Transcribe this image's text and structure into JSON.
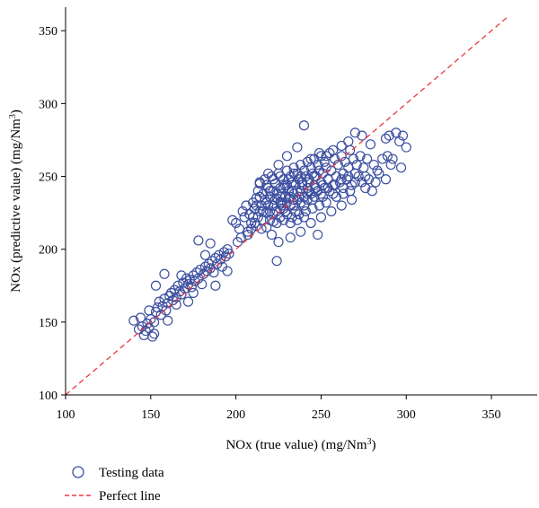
{
  "chart_data": {
    "type": "scatter",
    "xlabel": "NOx (true value) (mg/Nm",
    "xlabel_sup": "3",
    "xlabel_end": ")",
    "ylabel": "NOx (predictive value) (mg/Nm",
    "ylabel_sup": "3",
    "ylabel_end": ")",
    "xlim": [
      100,
      360
    ],
    "ylim": [
      100,
      360
    ],
    "x_ticks": [
      100,
      150,
      200,
      250,
      300,
      350
    ],
    "y_ticks": [
      100,
      150,
      200,
      250,
      300,
      350
    ],
    "grid": false,
    "legend_placement": "bottom-left",
    "colors": {
      "points": "#3c4fa0",
      "perfect_line": "#e8393f"
    },
    "series": [
      {
        "name": "Testing data",
        "kind": "scatter",
        "points": [
          [
            140,
            151
          ],
          [
            143,
            145
          ],
          [
            144,
            153
          ],
          [
            145,
            147
          ],
          [
            146,
            141
          ],
          [
            147,
            144
          ],
          [
            148,
            149
          ],
          [
            149,
            146
          ],
          [
            150,
            152
          ],
          [
            151,
            140
          ],
          [
            152,
            150
          ],
          [
            153,
            157
          ],
          [
            154,
            160
          ],
          [
            155,
            164
          ],
          [
            156,
            155
          ],
          [
            157,
            161
          ],
          [
            158,
            166
          ],
          [
            159,
            158
          ],
          [
            160,
            163
          ],
          [
            161,
            168
          ],
          [
            162,
            170
          ],
          [
            163,
            165
          ],
          [
            164,
            172
          ],
          [
            165,
            167
          ],
          [
            166,
            175
          ],
          [
            167,
            171
          ],
          [
            168,
            169
          ],
          [
            169,
            177
          ],
          [
            170,
            173
          ],
          [
            171,
            180
          ],
          [
            172,
            176
          ],
          [
            173,
            179
          ],
          [
            174,
            174
          ],
          [
            175,
            182
          ],
          [
            176,
            178
          ],
          [
            177,
            184
          ],
          [
            178,
            180
          ],
          [
            179,
            186
          ],
          [
            180,
            176
          ],
          [
            181,
            183
          ],
          [
            182,
            188
          ],
          [
            183,
            185
          ],
          [
            184,
            190
          ],
          [
            185,
            187
          ],
          [
            186,
            192
          ],
          [
            187,
            184
          ],
          [
            188,
            194
          ],
          [
            189,
            190
          ],
          [
            190,
            196
          ],
          [
            191,
            193
          ],
          [
            192,
            188
          ],
          [
            193,
            198
          ],
          [
            194,
            195
          ],
          [
            195,
            200
          ],
          [
            196,
            197
          ],
          [
            153,
            175
          ],
          [
            158,
            183
          ],
          [
            152,
            142
          ],
          [
            165,
            162
          ],
          [
            172,
            164
          ],
          [
            178,
            206
          ],
          [
            185,
            204
          ],
          [
            188,
            175
          ],
          [
            195,
            185
          ],
          [
            168,
            182
          ],
          [
            175,
            170
          ],
          [
            182,
            196
          ],
          [
            160,
            151
          ],
          [
            149,
            158
          ],
          [
            198,
            220
          ],
          [
            200,
            218
          ],
          [
            202,
            214
          ],
          [
            204,
            226
          ],
          [
            205,
            222
          ],
          [
            206,
            230
          ],
          [
            207,
            212
          ],
          [
            208,
            224
          ],
          [
            209,
            218
          ],
          [
            210,
            232
          ],
          [
            210,
            222
          ],
          [
            211,
            228
          ],
          [
            212,
            235
          ],
          [
            212,
            216
          ],
          [
            213,
            240
          ],
          [
            214,
            226
          ],
          [
            214,
            245
          ],
          [
            215,
            230
          ],
          [
            216,
            220
          ],
          [
            216,
            238
          ],
          [
            217,
            248
          ],
          [
            218,
            232
          ],
          [
            218,
            225
          ],
          [
            219,
            242
          ],
          [
            220,
            236
          ],
          [
            220,
            226
          ],
          [
            221,
            250
          ],
          [
            222,
            240
          ],
          [
            222,
            230
          ],
          [
            223,
            245
          ],
          [
            224,
            235
          ],
          [
            224,
            226
          ],
          [
            225,
            252
          ],
          [
            226,
            242
          ],
          [
            226,
            232
          ],
          [
            227,
            238
          ],
          [
            228,
            248
          ],
          [
            228,
            228
          ],
          [
            229,
            236
          ],
          [
            230,
            244
          ],
          [
            230,
            254
          ],
          [
            231,
            240
          ],
          [
            232,
            230
          ],
          [
            232,
            250
          ],
          [
            233,
            246
          ],
          [
            234,
            238
          ],
          [
            234,
            256
          ],
          [
            235,
            244
          ],
          [
            236,
            234
          ],
          [
            236,
            252
          ],
          [
            237,
            248
          ],
          [
            238,
            240
          ],
          [
            238,
            258
          ],
          [
            239,
            246
          ],
          [
            240,
            236
          ],
          [
            240,
            254
          ],
          [
            241,
            250
          ],
          [
            242,
            242
          ],
          [
            242,
            260
          ],
          [
            243,
            248
          ],
          [
            244,
            238
          ],
          [
            244,
            256
          ],
          [
            245,
            252
          ],
          [
            246,
            244
          ],
          [
            246,
            262
          ],
          [
            247,
            250
          ],
          [
            248,
            240
          ],
          [
            248,
            258
          ],
          [
            249,
            254
          ],
          [
            250,
            246
          ],
          [
            250,
            264
          ],
          [
            251,
            252
          ],
          [
            252,
            242
          ],
          [
            252,
            260
          ],
          [
            253,
            256
          ],
          [
            254,
            248
          ],
          [
            255,
            266
          ],
          [
            256,
            254
          ],
          [
            257,
            244
          ],
          [
            258,
            262
          ],
          [
            259,
            250
          ],
          [
            260,
            258
          ],
          [
            261,
            246
          ],
          [
            262,
            264
          ],
          [
            263,
            252
          ],
          [
            264,
            260
          ],
          [
            265,
            248
          ],
          [
            266,
            256
          ],
          [
            267,
            268
          ],
          [
            268,
            244
          ],
          [
            269,
            262
          ],
          [
            270,
            252
          ],
          [
            271,
            258
          ],
          [
            272,
            250
          ],
          [
            273,
            264
          ],
          [
            274,
            246
          ],
          [
            275,
            256
          ],
          [
            276,
            242
          ],
          [
            277,
            262
          ],
          [
            278,
            248
          ],
          [
            280,
            240
          ],
          [
            281,
            258
          ],
          [
            282,
            246
          ],
          [
            284,
            252
          ],
          [
            286,
            262
          ],
          [
            288,
            276
          ],
          [
            289,
            264
          ],
          [
            290,
            278
          ],
          [
            292,
            262
          ],
          [
            294,
            280
          ],
          [
            296,
            274
          ],
          [
            298,
            278
          ],
          [
            300,
            270
          ],
          [
            297,
            256
          ],
          [
            288,
            248
          ],
          [
            279,
            272
          ],
          [
            274,
            278
          ],
          [
            270,
            280
          ],
          [
            266,
            274
          ],
          [
            262,
            271
          ],
          [
            257,
            268
          ],
          [
            253,
            264
          ],
          [
            249,
            266
          ],
          [
            244,
            262
          ],
          [
            240,
            285
          ],
          [
            236,
            270
          ],
          [
            230,
            264
          ],
          [
            225,
            258
          ],
          [
            219,
            252
          ],
          [
            214,
            246
          ],
          [
            221,
            210
          ],
          [
            225,
            205
          ],
          [
            232,
            208
          ],
          [
            238,
            212
          ],
          [
            244,
            218
          ],
          [
            250,
            222
          ],
          [
            256,
            226
          ],
          [
            262,
            230
          ],
          [
            268,
            234
          ],
          [
            234,
            230
          ],
          [
            231,
            235
          ],
          [
            227,
            232
          ],
          [
            229,
            244
          ],
          [
            233,
            240
          ],
          [
            237,
            236
          ],
          [
            226,
            236
          ],
          [
            223,
            234
          ],
          [
            219,
            230
          ],
          [
            216,
            226
          ],
          [
            213,
            222
          ],
          [
            211,
            218
          ],
          [
            209,
            214
          ],
          [
            207,
            210
          ],
          [
            203,
            208
          ],
          [
            201,
            205
          ],
          [
            215,
            214
          ],
          [
            218,
            215
          ],
          [
            222,
            219
          ],
          [
            226,
            222
          ],
          [
            230,
            224
          ],
          [
            235,
            226
          ],
          [
            240,
            230
          ],
          [
            245,
            234
          ],
          [
            251,
            236
          ],
          [
            257,
            238
          ],
          [
            263,
            242
          ],
          [
            270,
            246
          ],
          [
            276,
            250
          ],
          [
            283,
            254
          ],
          [
            291,
            258
          ],
          [
            231,
            248
          ],
          [
            228,
            242
          ],
          [
            224,
            238
          ],
          [
            220,
            240
          ],
          [
            217,
            234
          ],
          [
            239,
            244
          ],
          [
            243,
            240
          ],
          [
            247,
            242
          ],
          [
            251,
            244
          ],
          [
            255,
            240
          ],
          [
            259,
            236
          ],
          [
            263,
            238
          ],
          [
            267,
            240
          ],
          [
            229,
            226
          ],
          [
            233,
            222
          ],
          [
            237,
            224
          ],
          [
            241,
            226
          ],
          [
            245,
            228
          ],
          [
            249,
            230
          ],
          [
            253,
            232
          ],
          [
            248,
            210
          ],
          [
            224,
            192
          ],
          [
            227,
            230
          ],
          [
            232,
            236
          ],
          [
            236,
            240
          ],
          [
            242,
            238
          ],
          [
            246,
            236
          ],
          [
            250,
            238
          ],
          [
            254,
            242
          ],
          [
            258,
            244
          ],
          [
            262,
            248
          ],
          [
            266,
            250
          ],
          [
            270,
            252
          ],
          [
            212,
            230
          ],
          [
            214,
            236
          ],
          [
            218,
            244
          ],
          [
            222,
            248
          ],
          [
            226,
            250
          ],
          [
            234,
            252
          ],
          [
            238,
            250
          ],
          [
            242,
            246
          ],
          [
            246,
            250
          ],
          [
            222,
            224
          ],
          [
            226,
            228
          ],
          [
            230,
            232
          ],
          [
            234,
            234
          ],
          [
            238,
            232
          ],
          [
            242,
            234
          ],
          [
            220,
            220
          ],
          [
            224,
            218
          ],
          [
            228,
            220
          ],
          [
            232,
            218
          ],
          [
            236,
            220
          ],
          [
            240,
            222
          ]
        ]
      },
      {
        "name": "Perfect line",
        "kind": "line",
        "points": [
          [
            100,
            100
          ],
          [
            360,
            360
          ]
        ]
      }
    ]
  }
}
